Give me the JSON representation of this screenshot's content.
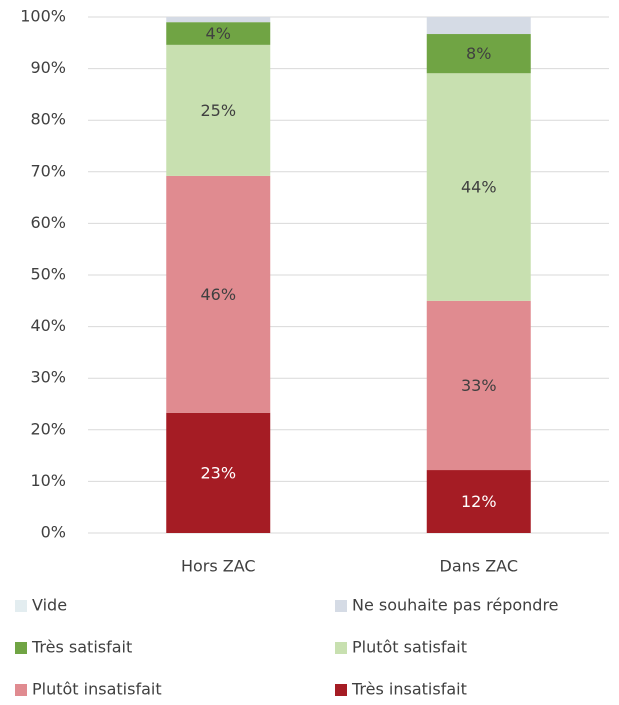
{
  "chart_data": {
    "type": "stacked_bar",
    "categories": [
      "Hors ZAC",
      "Dans ZAC"
    ],
    "series": [
      {
        "name": "Très insatisfait",
        "color": "#a51c24",
        "values": [
          23.3,
          12.2
        ],
        "value_labels": [
          "23%",
          "12%"
        ]
      },
      {
        "name": "Plutôt insatisfait",
        "color": "#e08b90",
        "values": [
          45.9,
          32.8
        ],
        "value_labels": [
          "46%",
          "33%"
        ]
      },
      {
        "name": "Plutôt satisfait",
        "color": "#c8e0b0",
        "values": [
          25.4,
          44.1
        ],
        "value_labels": [
          "25%",
          "44%"
        ]
      },
      {
        "name": "Très satisfait",
        "color": "#70a444",
        "values": [
          4.4,
          7.6
        ],
        "value_labels": [
          "4%",
          "8%"
        ]
      },
      {
        "name": "Ne souhaite pas répondre",
        "color": "#d5dbe5",
        "values": [
          1.0,
          3.3
        ]
      },
      {
        "name": "Vide",
        "color": "#e3edf0",
        "values": [
          0,
          0
        ]
      }
    ],
    "ylim": [
      0,
      100
    ],
    "yticks": [
      {
        "value": 0,
        "label": "0%"
      },
      {
        "value": 10,
        "label": "10%"
      },
      {
        "value": 20,
        "label": "20%"
      },
      {
        "value": 30,
        "label": "30%"
      },
      {
        "value": 40,
        "label": "40%"
      },
      {
        "value": 50,
        "label": "50%"
      },
      {
        "value": 60,
        "label": "60%"
      },
      {
        "value": 70,
        "label": "70%"
      },
      {
        "value": 80,
        "label": "80%"
      },
      {
        "value": 90,
        "label": "90%"
      },
      {
        "value": 100,
        "label": "100%"
      }
    ],
    "grid": true
  }
}
